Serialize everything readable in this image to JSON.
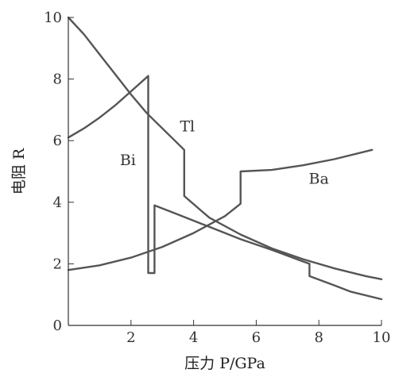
{
  "chart_data": {
    "type": "line",
    "xlabel": "压力 P/GPa",
    "ylabel": "电阻 R",
    "xlim": [
      0,
      10
    ],
    "ylim": [
      0,
      10
    ],
    "xticks": [
      2,
      4,
      6,
      8,
      10
    ],
    "yticks": [
      0,
      2,
      4,
      6,
      8,
      10
    ],
    "grid": false,
    "series": [
      {
        "name": "Bi",
        "points": [
          [
            0,
            6.1
          ],
          [
            0.5,
            6.4
          ],
          [
            1.0,
            6.75
          ],
          [
            1.5,
            7.15
          ],
          [
            2.0,
            7.6
          ],
          [
            2.55,
            8.1
          ],
          [
            2.55,
            1.7
          ],
          [
            2.75,
            1.7
          ],
          [
            2.75,
            3.9
          ],
          [
            3.5,
            3.6
          ],
          [
            4.5,
            3.2
          ],
          [
            5.5,
            2.8
          ],
          [
            6.5,
            2.45
          ],
          [
            7.7,
            2.0
          ],
          [
            7.7,
            1.6
          ],
          [
            8.5,
            1.3
          ],
          [
            9.0,
            1.1
          ],
          [
            10.0,
            0.85
          ]
        ]
      },
      {
        "name": "Tl",
        "points": [
          [
            0,
            10.0
          ],
          [
            0.5,
            9.45
          ],
          [
            1.0,
            8.8
          ],
          [
            1.5,
            8.15
          ],
          [
            2.0,
            7.5
          ],
          [
            2.5,
            6.9
          ],
          [
            3.0,
            6.4
          ],
          [
            3.7,
            5.7
          ],
          [
            3.7,
            4.2
          ],
          [
            4.5,
            3.5
          ],
          [
            5.5,
            2.95
          ],
          [
            6.5,
            2.5
          ],
          [
            7.5,
            2.15
          ],
          [
            8.5,
            1.85
          ],
          [
            9.5,
            1.6
          ],
          [
            10.0,
            1.5
          ]
        ]
      },
      {
        "name": "Ba",
        "points": [
          [
            0,
            1.8
          ],
          [
            1.0,
            1.95
          ],
          [
            2.0,
            2.2
          ],
          [
            3.0,
            2.55
          ],
          [
            4.0,
            3.0
          ],
          [
            5.0,
            3.55
          ],
          [
            5.5,
            3.95
          ],
          [
            5.5,
            5.0
          ],
          [
            6.5,
            5.05
          ],
          [
            7.5,
            5.2
          ],
          [
            8.5,
            5.4
          ],
          [
            9.7,
            5.7
          ]
        ]
      }
    ],
    "labels": [
      {
        "text": "Bi",
        "x": 1.9,
        "y": 5.2
      },
      {
        "text": "Tl",
        "x": 3.8,
        "y": 6.3
      },
      {
        "text": "Ba",
        "x": 8.0,
        "y": 4.6
      }
    ]
  }
}
